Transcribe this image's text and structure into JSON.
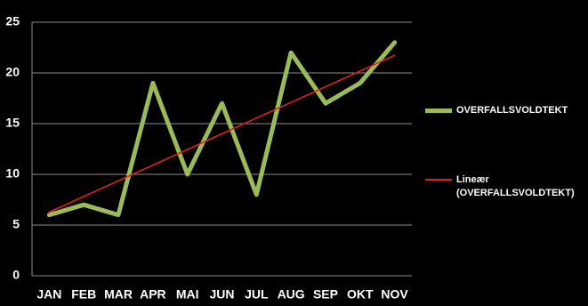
{
  "chart_data": {
    "type": "line",
    "categories": [
      "JAN",
      "FEB",
      "MAR",
      "APR",
      "MAI",
      "JUN",
      "JUL",
      "AUG",
      "SEP",
      "OKT",
      "NOV"
    ],
    "series": [
      {
        "name": "OVERFALLSVOLDTEKT",
        "color": "#9bbb59",
        "values": [
          6,
          7,
          6,
          19,
          10,
          17,
          8,
          22,
          17,
          19,
          23
        ]
      },
      {
        "name": "Lineær (OVERFALLSVOLDTEKT)",
        "color": "#e02020",
        "values": [
          6.27,
          7.82,
          9.36,
          10.91,
          12.45,
          14.0,
          15.55,
          17.09,
          18.64,
          20.18,
          21.73
        ]
      }
    ],
    "ylim": [
      0,
      25
    ],
    "yticks": [
      0,
      5,
      10,
      15,
      20,
      25
    ],
    "grid": true
  }
}
